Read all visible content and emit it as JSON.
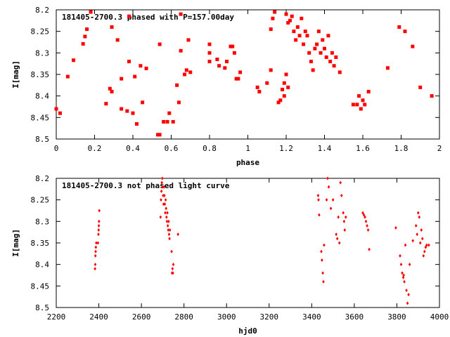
{
  "chart_data": [
    {
      "type": "scatter",
      "title": "181405-2700.3 phased with P=157.00day",
      "xlabel": "phase",
      "ylabel": "I[mag]",
      "xlim": [
        0,
        2
      ],
      "ylim": [
        8.5,
        8.2
      ],
      "y_inverted": true,
      "grid": false,
      "marker_color": "#ff0000",
      "marker": "filled-square",
      "x_ticks": [
        "0",
        "0.2",
        "0.4",
        "0.6",
        "0.8",
        "1",
        "1.2",
        "1.4",
        "1.6",
        "1.8",
        "2"
      ],
      "y_ticks": [
        "8.2",
        "8.25",
        "8.3",
        "8.35",
        "8.4",
        "8.45",
        "8.5"
      ],
      "series": [
        {
          "points": [
            [
              0.0,
              8.43
            ],
            [
              0.02,
              8.44
            ],
            [
              0.06,
              8.355
            ],
            [
              0.09,
              8.317
            ],
            [
              0.14,
              8.279
            ],
            [
              0.15,
              8.262
            ],
            [
              0.16,
              8.245
            ],
            [
              0.18,
              8.205
            ],
            [
              0.26,
              8.418
            ],
            [
              0.28,
              8.383
            ],
            [
              0.29,
              8.39
            ],
            [
              0.29,
              8.24
            ],
            [
              0.32,
              8.27
            ],
            [
              0.34,
              8.36
            ],
            [
              0.34,
              8.43
            ],
            [
              0.37,
              8.435
            ],
            [
              0.38,
              8.32
            ],
            [
              0.38,
              8.215
            ],
            [
              0.4,
              8.44
            ],
            [
              0.41,
              8.355
            ],
            [
              0.42,
              8.465
            ],
            [
              0.44,
              8.33
            ],
            [
              0.45,
              8.415
            ],
            [
              0.47,
              8.336
            ],
            [
              0.53,
              8.49
            ],
            [
              0.54,
              8.49
            ],
            [
              0.54,
              8.28
            ],
            [
              0.56,
              8.46
            ],
            [
              0.58,
              8.46
            ],
            [
              0.59,
              8.44
            ],
            [
              0.61,
              8.46
            ],
            [
              0.63,
              8.375
            ],
            [
              0.64,
              8.415
            ],
            [
              0.65,
              8.21
            ],
            [
              0.65,
              8.295
            ],
            [
              0.67,
              8.35
            ],
            [
              0.68,
              8.34
            ],
            [
              0.69,
              8.27
            ],
            [
              0.7,
              8.345
            ],
            [
              0.8,
              8.28
            ],
            [
              0.8,
              8.3
            ],
            [
              0.8,
              8.32
            ],
            [
              0.84,
              8.315
            ],
            [
              0.85,
              8.33
            ],
            [
              0.88,
              8.335
            ],
            [
              0.89,
              8.32
            ],
            [
              0.91,
              8.285
            ],
            [
              0.92,
              8.285
            ],
            [
              0.93,
              8.3
            ],
            [
              0.94,
              8.36
            ],
            [
              0.95,
              8.36
            ],
            [
              0.96,
              8.345
            ],
            [
              1.05,
              8.38
            ],
            [
              1.06,
              8.39
            ],
            [
              1.1,
              8.37
            ],
            [
              1.12,
              8.34
            ],
            [
              1.12,
              8.245
            ],
            [
              1.13,
              8.22
            ],
            [
              1.14,
              8.205
            ],
            [
              1.16,
              8.415
            ],
            [
              1.17,
              8.41
            ],
            [
              1.18,
              8.385
            ],
            [
              1.19,
              8.37
            ],
            [
              1.19,
              8.4
            ],
            [
              1.2,
              8.35
            ],
            [
              1.21,
              8.38
            ],
            [
              1.2,
              8.21
            ],
            [
              1.21,
              8.23
            ],
            [
              1.22,
              8.225
            ],
            [
              1.23,
              8.215
            ],
            [
              1.24,
              8.25
            ],
            [
              1.25,
              8.27
            ],
            [
              1.26,
              8.24
            ],
            [
              1.27,
              8.26
            ],
            [
              1.28,
              8.22
            ],
            [
              1.29,
              8.28
            ],
            [
              1.3,
              8.25
            ],
            [
              1.31,
              8.26
            ],
            [
              1.32,
              8.3
            ],
            [
              1.33,
              8.32
            ],
            [
              1.34,
              8.34
            ],
            [
              1.35,
              8.29
            ],
            [
              1.36,
              8.28
            ],
            [
              1.37,
              8.25
            ],
            [
              1.38,
              8.3
            ],
            [
              1.39,
              8.27
            ],
            [
              1.4,
              8.29
            ],
            [
              1.41,
              8.31
            ],
            [
              1.42,
              8.26
            ],
            [
              1.43,
              8.32
            ],
            [
              1.44,
              8.3
            ],
            [
              1.45,
              8.33
            ],
            [
              1.46,
              8.31
            ],
            [
              1.48,
              8.345
            ],
            [
              1.55,
              8.42
            ],
            [
              1.57,
              8.42
            ],
            [
              1.58,
              8.4
            ],
            [
              1.59,
              8.43
            ],
            [
              1.6,
              8.41
            ],
            [
              1.61,
              8.42
            ],
            [
              1.63,
              8.39
            ],
            [
              1.73,
              8.335
            ],
            [
              1.79,
              8.24
            ],
            [
              1.82,
              8.25
            ],
            [
              1.86,
              8.285
            ],
            [
              1.9,
              8.38
            ],
            [
              1.96,
              8.4
            ]
          ]
        }
      ]
    },
    {
      "type": "scatter",
      "title": "181405-2700.3 not phased light curve",
      "xlabel": "hjd0",
      "ylabel": "I[mag]",
      "xlim": [
        2200,
        4000
      ],
      "ylim": [
        8.5,
        8.2
      ],
      "y_inverted": true,
      "grid": false,
      "marker_color": "#ff0000",
      "marker": "filled-diamond",
      "x_ticks": [
        "2200",
        "2400",
        "2600",
        "2800",
        "3000",
        "3200",
        "3400",
        "3600",
        "3800",
        "4000"
      ],
      "y_ticks": [
        "8.2",
        "8.25",
        "8.3",
        "8.35",
        "8.4",
        "8.45",
        "8.5"
      ],
      "series": [
        {
          "points": [
            [
              2382,
              8.41
            ],
            [
              2383,
              8.4
            ],
            [
              2384,
              8.38
            ],
            [
              2385,
              8.37
            ],
            [
              2386,
              8.36
            ],
            [
              2388,
              8.35
            ],
            [
              2396,
              8.35
            ],
            [
              2398,
              8.33
            ],
            [
              2399,
              8.32
            ],
            [
              2400,
              8.31
            ],
            [
              2401,
              8.3
            ],
            [
              2402,
              8.275
            ],
            [
              2690,
              8.29
            ],
            [
              2692,
              8.25
            ],
            [
              2694,
              8.23
            ],
            [
              2696,
              8.21
            ],
            [
              2698,
              8.2
            ],
            [
              2700,
              8.22
            ],
            [
              2702,
              8.24
            ],
            [
              2704,
              8.26
            ],
            [
              2706,
              8.22
            ],
            [
              2708,
              8.24
            ],
            [
              2710,
              8.26
            ],
            [
              2712,
              8.28
            ],
            [
              2714,
              8.25
            ],
            [
              2716,
              8.27
            ],
            [
              2718,
              8.29
            ],
            [
              2720,
              8.3
            ],
            [
              2722,
              8.28
            ],
            [
              2724,
              8.31
            ],
            [
              2726,
              8.32
            ],
            [
              2728,
              8.3
            ],
            [
              2730,
              8.33
            ],
            [
              2732,
              8.34
            ],
            [
              2734,
              8.32
            ],
            [
              2742,
              8.37
            ],
            [
              2744,
              8.42
            ],
            [
              2746,
              8.41
            ],
            [
              2748,
              8.42
            ],
            [
              2750,
              8.4
            ],
            [
              2772,
              8.33
            ],
            [
              3430,
              8.24
            ],
            [
              3432,
              8.25
            ],
            [
              3435,
              8.285
            ],
            [
              3445,
              8.37
            ],
            [
              3448,
              8.39
            ],
            [
              3452,
              8.42
            ],
            [
              3455,
              8.44
            ],
            [
              3458,
              8.355
            ],
            [
              3470,
              8.25
            ],
            [
              3475,
              8.2
            ],
            [
              3480,
              8.22
            ],
            [
              3490,
              8.27
            ],
            [
              3500,
              8.25
            ],
            [
              3515,
              8.33
            ],
            [
              3520,
              8.34
            ],
            [
              3525,
              8.29
            ],
            [
              3530,
              8.35
            ],
            [
              3535,
              8.21
            ],
            [
              3540,
              8.24
            ],
            [
              3548,
              8.28
            ],
            [
              3552,
              8.3
            ],
            [
              3555,
              8.32
            ],
            [
              3560,
              8.29
            ],
            [
              3640,
              8.28
            ],
            [
              3645,
              8.285
            ],
            [
              3650,
              8.29
            ],
            [
              3655,
              8.3
            ],
            [
              3660,
              8.31
            ],
            [
              3665,
              8.32
            ],
            [
              3670,
              8.365
            ],
            [
              3795,
              8.315
            ],
            [
              3815,
              8.38
            ],
            [
              3820,
              8.4
            ],
            [
              3825,
              8.42
            ],
            [
              3830,
              8.43
            ],
            [
              3832,
              8.425
            ],
            [
              3835,
              8.44
            ],
            [
              3840,
              8.355
            ],
            [
              3845,
              8.46
            ],
            [
              3850,
              8.49
            ],
            [
              3855,
              8.47
            ],
            [
              3860,
              8.4
            ],
            [
              3875,
              8.345
            ],
            [
              3890,
              8.31
            ],
            [
              3895,
              8.33
            ],
            [
              3900,
              8.28
            ],
            [
              3905,
              8.29
            ],
            [
              3910,
              8.35
            ],
            [
              3915,
              8.32
            ],
            [
              3920,
              8.34
            ],
            [
              3925,
              8.38
            ],
            [
              3930,
              8.37
            ],
            [
              3935,
              8.36
            ],
            [
              3940,
              8.355
            ],
            [
              3950,
              8.355
            ]
          ]
        }
      ]
    }
  ]
}
